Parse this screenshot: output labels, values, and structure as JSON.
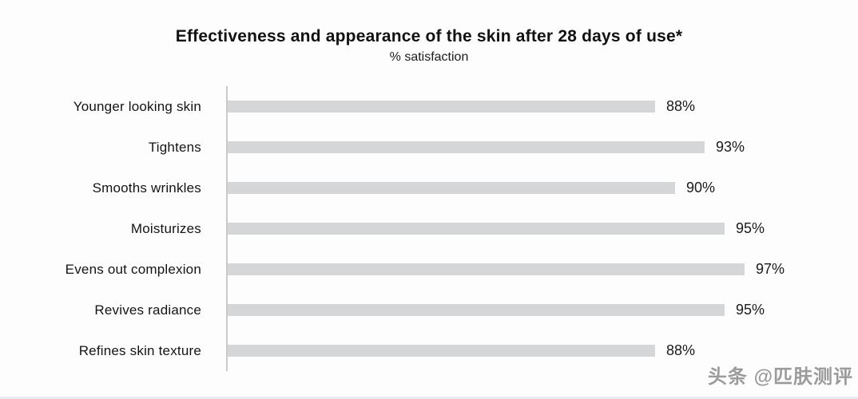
{
  "chart_data": {
    "type": "bar",
    "orientation": "horizontal",
    "title": "Effectiveness and appearance of the skin after 28 days of use*",
    "subtitle": "% satisfaction",
    "categories": [
      "Younger looking skin",
      "Tightens",
      "Smooths wrinkles",
      "Moisturizes",
      "Evens out complexion",
      "Revives radiance",
      "Refines skin texture"
    ],
    "values": [
      88,
      93,
      90,
      95,
      97,
      95,
      88
    ],
    "display_values": [
      "88%",
      "93%",
      "90%",
      "95%",
      "97%",
      "95%",
      "88%"
    ],
    "value_suffix": "%",
    "xlim": [
      45,
      100
    ],
    "grid": false,
    "legend": "none",
    "bar_color": "#d5d6d8",
    "axis_color": "#c9cace"
  },
  "watermark": {
    "text": "头条 @匹肤测评"
  }
}
